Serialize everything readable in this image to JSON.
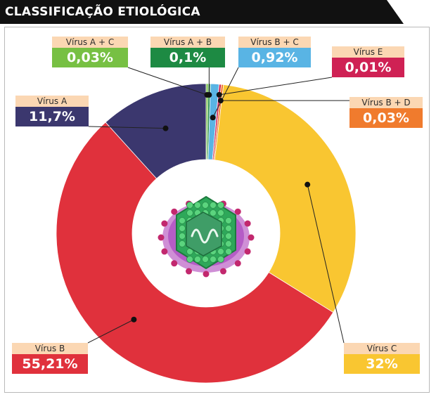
{
  "page": {
    "title": "CLASSIFICAÇÃO ETIOLÓGICA"
  },
  "colors": {
    "header_bg": "#111111",
    "label_bg": "#fbd7b3"
  },
  "center_image": {
    "icon": "virus-illustration-icon"
  },
  "chart_data": {
    "type": "pie",
    "variant": "donut",
    "title": "CLASSIFICAÇÃO ETIOLÓGICA",
    "unit": "%",
    "slices": [
      {
        "label": "Vírus A + C",
        "value": 0.03,
        "value_label": "0,03%",
        "color": "#77c043"
      },
      {
        "label": "Vírus A + B",
        "value": 0.1,
        "value_label": "0,1%",
        "color": "#1d8a43"
      },
      {
        "label": "Vírus B + C",
        "value": 0.92,
        "value_label": "0,92%",
        "color": "#59b4e4"
      },
      {
        "label": "Vírus E",
        "value": 0.01,
        "value_label": "0,01%",
        "color": "#cf2154"
      },
      {
        "label": "Vírus B + D",
        "value": 0.03,
        "value_label": "0,03%",
        "color": "#f07b2d"
      },
      {
        "label": "Vírus C",
        "value": 32,
        "value_label": "32%",
        "color": "#f9c631"
      },
      {
        "label": "Vírus B",
        "value": 55.21,
        "value_label": "55,21%",
        "color": "#e0313c"
      },
      {
        "label": "Vírus A",
        "value": 11.7,
        "value_label": "11,7%",
        "color": "#3b376e"
      }
    ]
  }
}
